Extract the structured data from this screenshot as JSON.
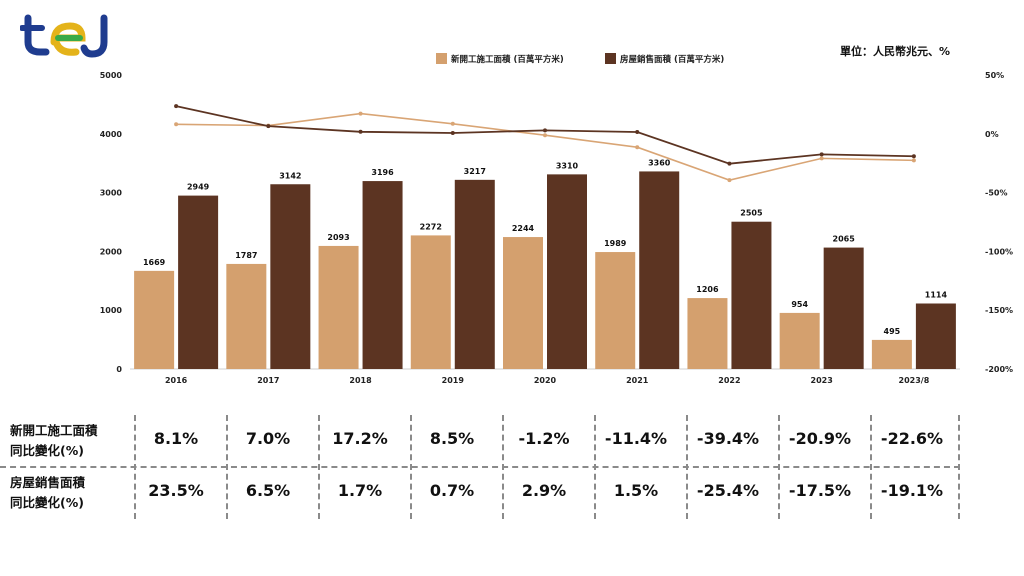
{
  "logo": {
    "text": "tej"
  },
  "unit_label": "單位：人民幣兆元、%",
  "chart_data": {
    "type": "bar",
    "categories": [
      "2016",
      "2017",
      "2018",
      "2019",
      "2020",
      "2021",
      "2022",
      "2023",
      "2023/8"
    ],
    "series": [
      {
        "name": "新開工施工面積 (百萬平方米)",
        "color": "#D4A06E",
        "values": [
          1669,
          1787,
          2093,
          2272,
          2244,
          1989,
          1206,
          954,
          495
        ]
      },
      {
        "name": "房屋銷售面積 (百萬平方米)",
        "color": "#5C3422",
        "values": [
          2949,
          3142,
          3196,
          3217,
          3310,
          3360,
          2505,
          2065,
          1114
        ]
      }
    ],
    "lines": [
      {
        "name": "新開工施工面積同比變化",
        "color": "#D9A575",
        "values": [
          8.1,
          7.0,
          17.2,
          8.5,
          -1.2,
          -11.4,
          -39.4,
          -20.9,
          -22.6
        ]
      },
      {
        "name": "房屋銷售面積同比變化",
        "color": "#5C3422",
        "values": [
          23.5,
          6.5,
          1.7,
          0.7,
          2.9,
          1.5,
          -25.4,
          -17.5,
          -19.1
        ]
      }
    ],
    "ylim": [
      0,
      5000
    ],
    "yticks": [
      "0",
      "1000",
      "2000",
      "3000",
      "4000",
      "5000"
    ],
    "y2lim": [
      -200,
      50
    ],
    "y2ticks": [
      "50%",
      "0%",
      "-50%",
      "-100%",
      "-150%",
      "-200%"
    ]
  },
  "table": {
    "rows": [
      {
        "label_line1": "新開工施工面積",
        "label_line2": "同比變化(%)",
        "values": [
          "8.1%",
          "7.0%",
          "17.2%",
          "8.5%",
          "-1.2%",
          "-11.4%",
          "-39.4%",
          "-20.9%",
          "-22.6%"
        ]
      },
      {
        "label_line1": "房屋銷售面積",
        "label_line2": "同比變化(%)",
        "values": [
          "23.5%",
          "6.5%",
          "1.7%",
          "0.7%",
          "2.9%",
          "1.5%",
          "-25.4%",
          "-17.5%",
          "-19.1%"
        ]
      }
    ]
  }
}
